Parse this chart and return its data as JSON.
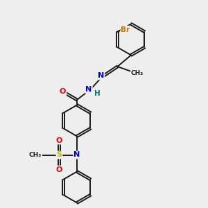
{
  "bg_color": "#eeeeee",
  "bond_color": "#1a1a1a",
  "lw": 1.4,
  "dbl_off": 0.045,
  "ac": {
    "O": "#ee0000",
    "N": "#0000cc",
    "S": "#bbbb00",
    "Br": "#cc7700",
    "H": "#007777",
    "C": "#1a1a1a"
  },
  "figsize": [
    3.0,
    3.0
  ],
  "dpi": 100,
  "xlim": [
    0,
    10
  ],
  "ylim": [
    0,
    10
  ]
}
